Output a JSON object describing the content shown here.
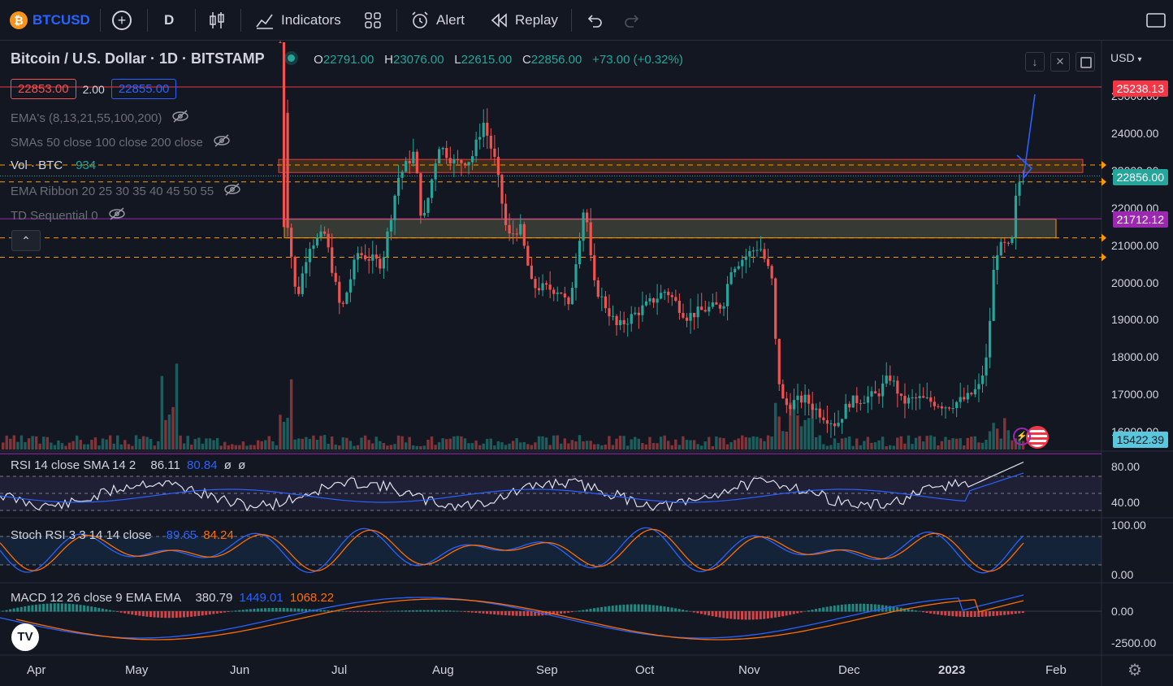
{
  "toolbar": {
    "symbol": "BTCUSD",
    "interval": "D",
    "indicators_label": "Indicators",
    "alert_label": "Alert",
    "replay_label": "Replay"
  },
  "legend": {
    "title": "Bitcoin / U.S. Dollar · 1D · BITSTAMP",
    "o_label": "O",
    "o_value": "22791.00",
    "h_label": "H",
    "h_value": "23076.00",
    "l_label": "L",
    "l_value": "22615.00",
    "c_label": "C",
    "c_value": "22856.00",
    "change": "+73.00 (+0.32%)",
    "bid": "22853.00",
    "spread": "2.00",
    "ask": "22855.00",
    "currency": "USD"
  },
  "studies": [
    {
      "label": "EMA's (8,13,21,55,100,200)"
    },
    {
      "label": "SMAs 50 close 100 close 200 close"
    },
    {
      "label": "Vol · BTC",
      "value": "934"
    },
    {
      "label": "EMA Ribbon 20 25 30 35 40 45 50 55"
    },
    {
      "label": "TD Sequential 0"
    }
  ],
  "price_axis": [
    "25000.00",
    "24000.00",
    "23000.00",
    "22000.00",
    "21000.00",
    "20000.00",
    "19000.00",
    "18000.00",
    "17000.00",
    "16000.00"
  ],
  "price_labels": {
    "top_line": "25238.13",
    "last": "22856.00",
    "mid_line": "21712.12",
    "low_line": "15422.39"
  },
  "x_axis": [
    "Apr",
    "May",
    "Jun",
    "Jul",
    "Aug",
    "Sep",
    "Oct",
    "Nov",
    "Dec",
    "2023",
    "Feb"
  ],
  "rsi": {
    "label": "RSI 14 close SMA 14 2",
    "v1": "86.11",
    "v2": "80.84",
    "v3": "ø",
    "v4": "ø",
    "ticks": [
      "80.00",
      "40.00"
    ]
  },
  "stoch": {
    "label": "Stoch RSI 3 3 14 14 close",
    "k": "89.65",
    "d": "84.24",
    "ticks": [
      "100.00",
      "0.00"
    ]
  },
  "macd": {
    "label": "MACD 12 26 close 9 EMA EMA",
    "hist": "380.79",
    "macd": "1449.01",
    "signal": "1068.22",
    "ticks": [
      "0.00",
      "-2500.00"
    ]
  },
  "colors": {
    "up": "#26a69a",
    "down": "#ef5350",
    "bg": "#131722",
    "accent": "#2962ff",
    "orange": "#ff9800",
    "last_price": "#26a69a"
  }
}
